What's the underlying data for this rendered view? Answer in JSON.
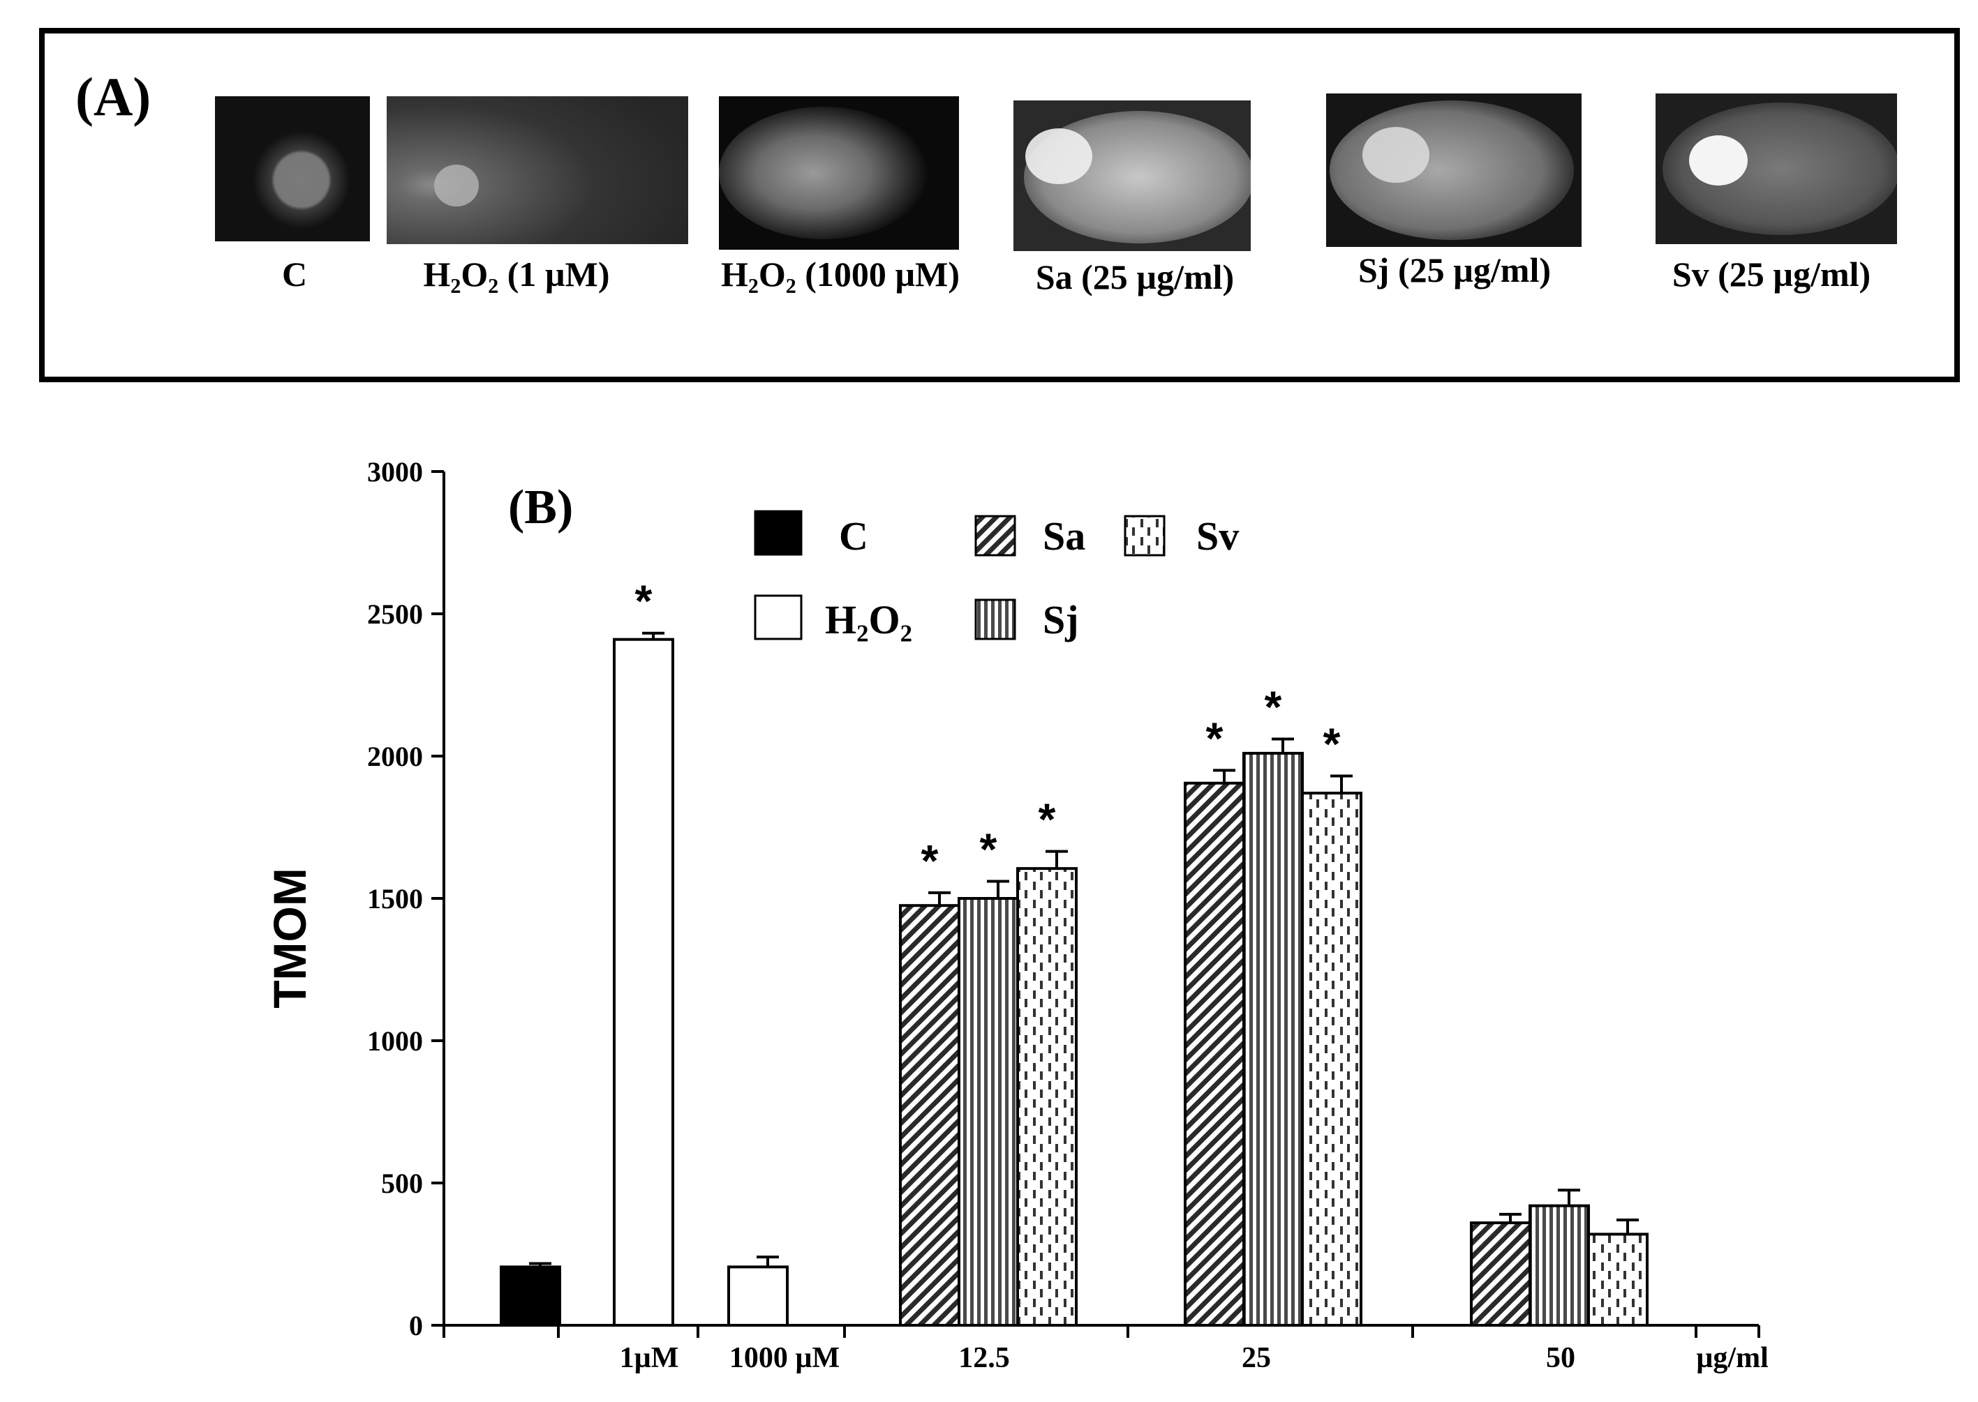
{
  "panel_a": {
    "label": "(A)",
    "images": [
      {
        "caption": "C"
      },
      {
        "caption": "H₂O₂ (1 µM)"
      },
      {
        "caption": "H₂O₂ (1000 µM)"
      },
      {
        "caption": "Sa (25 µg/ml)"
      },
      {
        "caption": "Sj (25 µg/ml)"
      },
      {
        "caption": "Sv (25 µg/ml)"
      }
    ]
  },
  "chart_data": {
    "type": "bar",
    "panel_label": "(B)",
    "ylabel": "TMOM",
    "xlabel": "",
    "ylim": [
      0,
      3000
    ],
    "yticks": [
      0,
      500,
      1000,
      1500,
      2000,
      2500,
      3000
    ],
    "x_tick_labels": [
      "1µM",
      "1000 µM",
      "12.5",
      "25",
      "50",
      "µg/ml"
    ],
    "legend": [
      "C",
      "H₂O₂",
      "Sa",
      "Sv",
      "Sj"
    ],
    "legend_placement": "top",
    "groups": [
      {
        "label": "",
        "bars": [
          {
            "series": "C",
            "value": 205,
            "error": 12,
            "sig": false
          }
        ]
      },
      {
        "label": "1µM",
        "bars": [
          {
            "series": "H₂O₂",
            "value": 2410,
            "error": 22,
            "sig": true
          }
        ]
      },
      {
        "label": "1000 µM",
        "bars": [
          {
            "series": "H₂O₂",
            "value": 205,
            "error": 35,
            "sig": false
          }
        ]
      },
      {
        "label": "12.5",
        "bars": [
          {
            "series": "Sa",
            "value": 1475,
            "error": 45,
            "sig": true
          },
          {
            "series": "Sj",
            "value": 1500,
            "error": 60,
            "sig": true
          },
          {
            "series": "Sv",
            "value": 1605,
            "error": 60,
            "sig": true
          }
        ]
      },
      {
        "label": "25",
        "bars": [
          {
            "series": "Sa",
            "value": 1905,
            "error": 45,
            "sig": true
          },
          {
            "series": "Sj",
            "value": 2010,
            "error": 50,
            "sig": true
          },
          {
            "series": "Sv",
            "value": 1870,
            "error": 60,
            "sig": true
          }
        ]
      },
      {
        "label": "50",
        "bars": [
          {
            "series": "Sa",
            "value": 360,
            "error": 30,
            "sig": false
          },
          {
            "series": "Sj",
            "value": 420,
            "error": 55,
            "sig": false
          },
          {
            "series": "Sv",
            "value": 320,
            "error": 50,
            "sig": false
          }
        ]
      }
    ],
    "significance_marker": "*"
  }
}
